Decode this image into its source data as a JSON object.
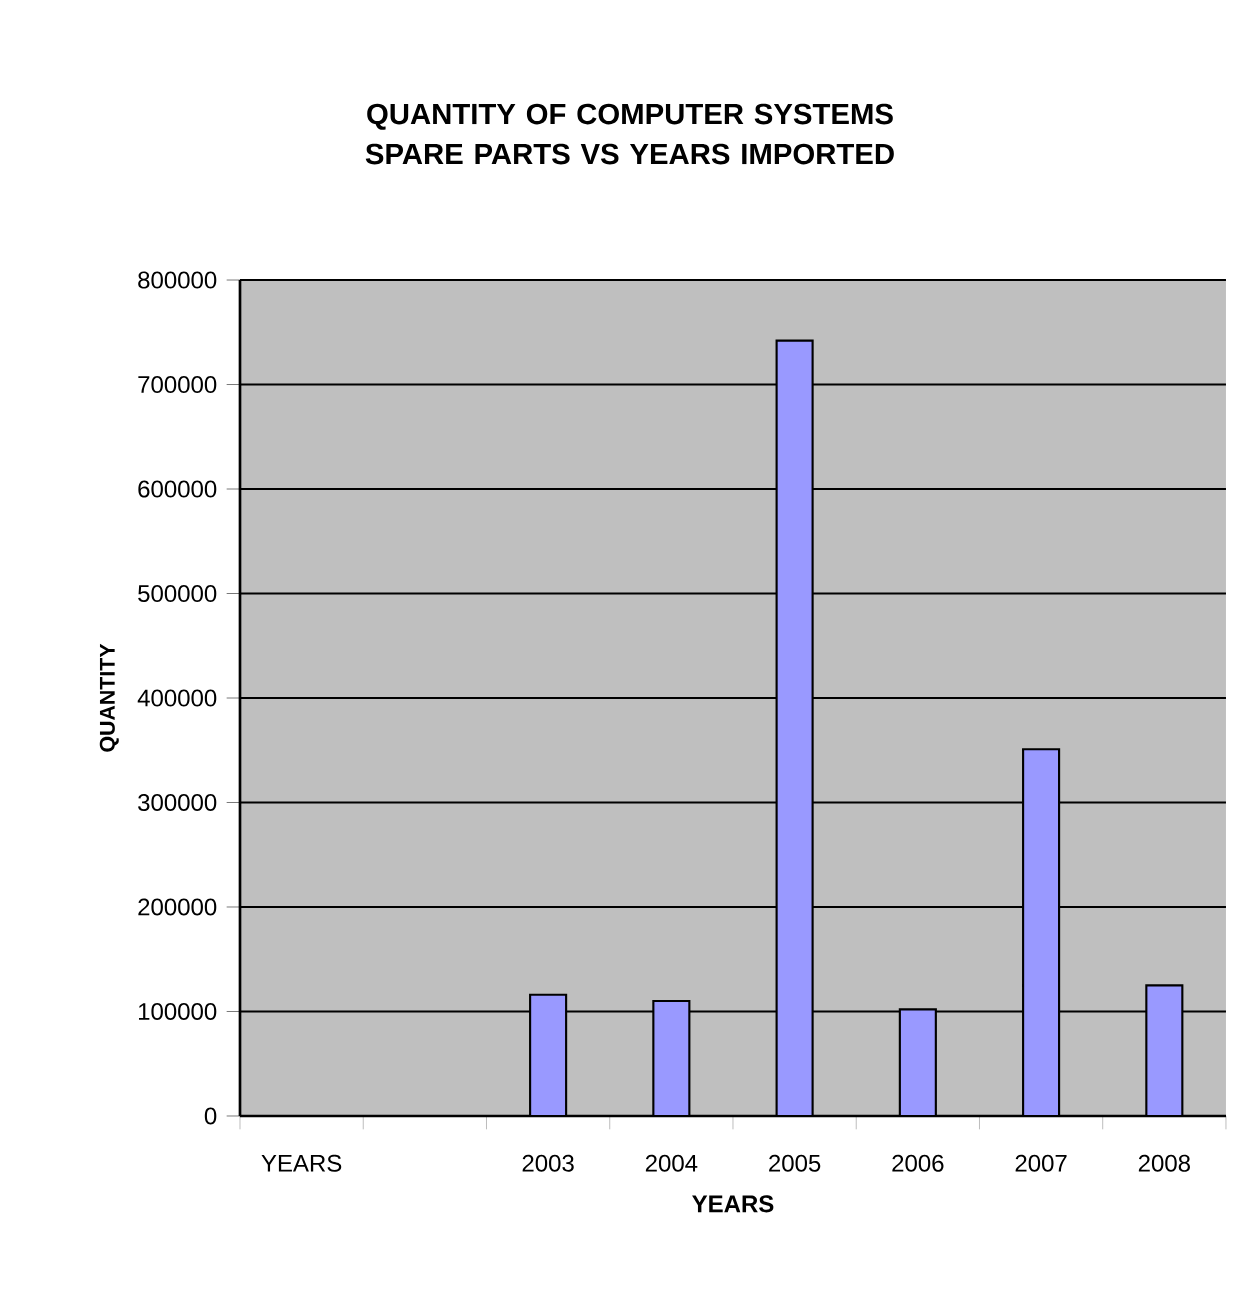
{
  "chart_data": {
    "type": "bar",
    "title": "QUANTITY OF COMPUTER SYSTEMS SPARE PARTS VS YEARS IMPORTED",
    "xlabel": "YEARS",
    "ylabel": "QUANTITY",
    "categories": [
      "YEARS",
      null,
      "2003",
      "2004",
      "2005",
      "2006",
      "2007",
      "2008"
    ],
    "values": [
      null,
      null,
      116000,
      110000,
      742000,
      102000,
      351000,
      125000
    ],
    "color": "#9999ff",
    "ylim": [
      0,
      800000
    ],
    "yticks": [
      0,
      100000,
      200000,
      300000,
      400000,
      500000,
      600000,
      700000,
      800000
    ],
    "grid": "y"
  }
}
